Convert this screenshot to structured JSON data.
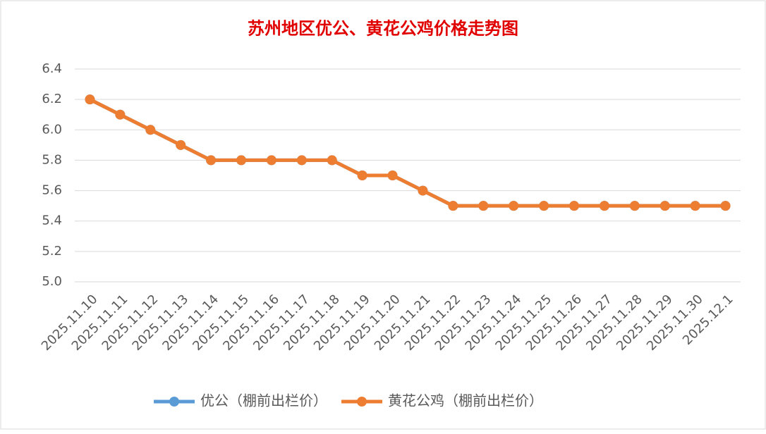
{
  "chart_data": {
    "type": "line",
    "title": "苏州地区优公、黄花公鸡价格走势图",
    "categories": [
      "2025.11.10",
      "2025.11.11",
      "2025.11.12",
      "2025.11.13",
      "2025.11.14",
      "2025.11.15",
      "2025.11.16",
      "2025.11.17",
      "2025.11.18",
      "2025.11.19",
      "2025.11.20",
      "2025.11.21",
      "2025.11.22",
      "2025.11.23",
      "2025.11.24",
      "2025.11.25",
      "2025.11.26",
      "2025.11.27",
      "2025.11.28",
      "2025.11.29",
      "2025.11.30",
      "2025.12.1"
    ],
    "series": [
      {
        "name": "优公（棚前出栏价）",
        "color": "#5b9bd5",
        "values": [
          6.2,
          6.1,
          6.0,
          5.9,
          5.8,
          5.8,
          5.8,
          5.8,
          5.8,
          5.7,
          5.7,
          5.6,
          5.5,
          5.5,
          5.5,
          5.5,
          5.5,
          5.5,
          5.5,
          5.5,
          5.5,
          5.5
        ]
      },
      {
        "name": "黄花公鸡（棚前出栏价）",
        "color": "#ed7d31",
        "values": [
          6.2,
          6.1,
          6.0,
          5.9,
          5.8,
          5.8,
          5.8,
          5.8,
          5.8,
          5.7,
          5.7,
          5.6,
          5.5,
          5.5,
          5.5,
          5.5,
          5.5,
          5.5,
          5.5,
          5.5,
          5.5,
          5.5
        ]
      }
    ],
    "ylim": [
      5.0,
      6.4
    ],
    "yticks": [
      {
        "value": 5.0,
        "label": "5.0"
      },
      5.2,
      5.4,
      5.6,
      5.8,
      {
        "value": 6.0,
        "label": "6.0"
      },
      6.2,
      6.4
    ],
    "grid": true,
    "legend": "bottom"
  }
}
